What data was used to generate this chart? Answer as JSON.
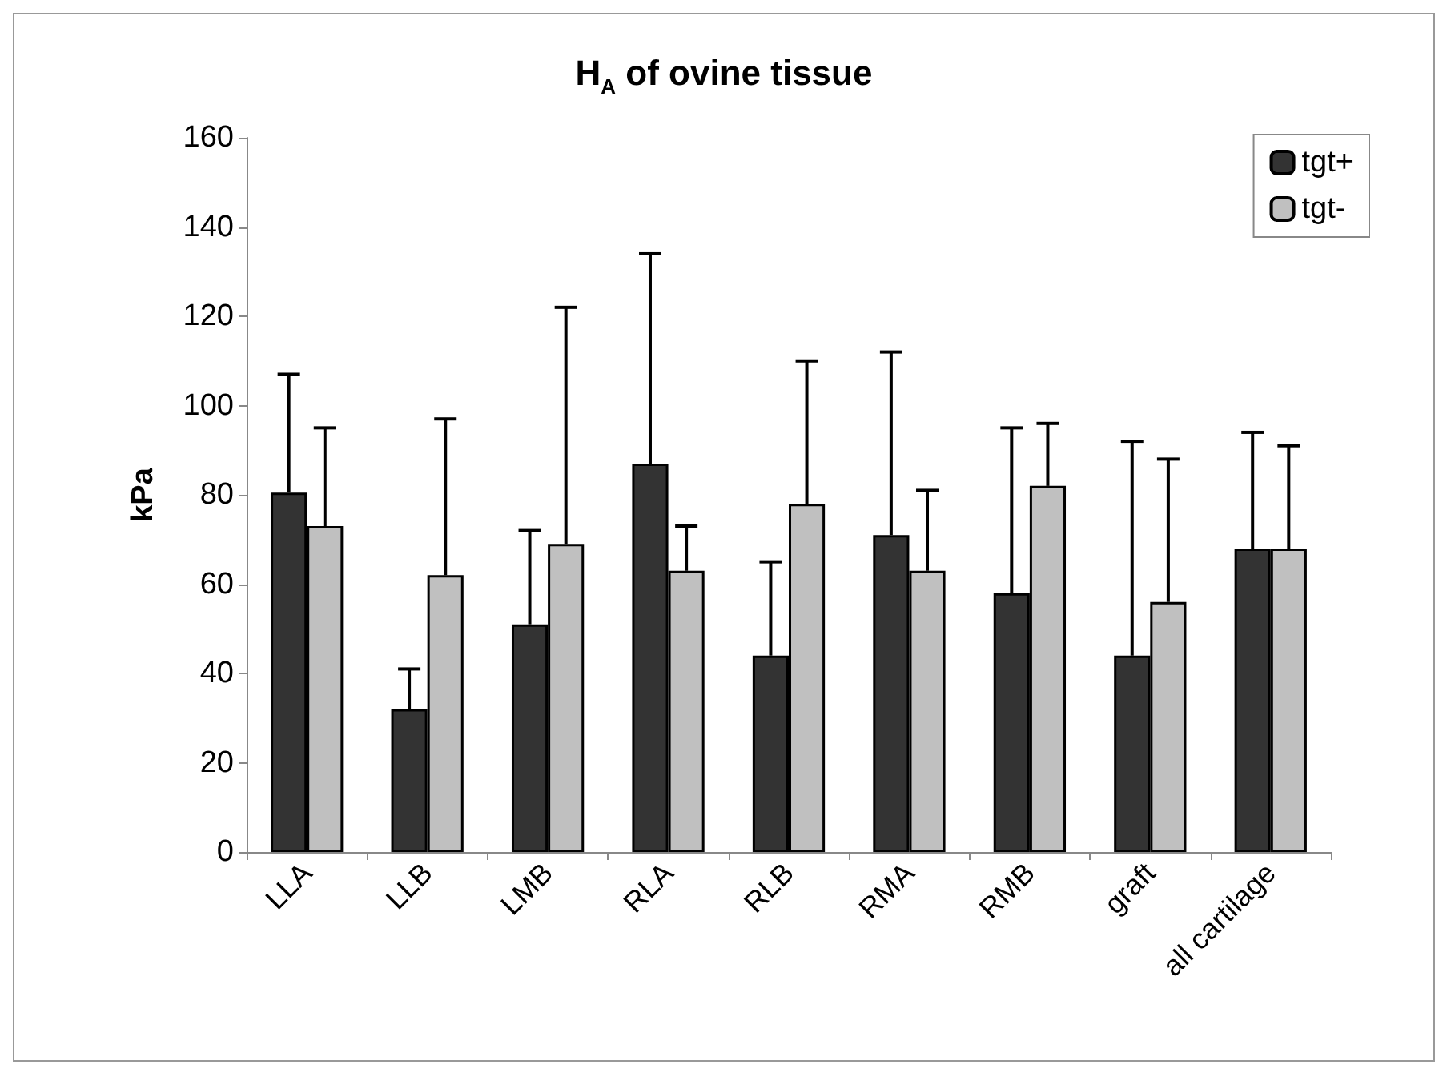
{
  "chart_data": {
    "type": "bar",
    "title": "H$_{A}$ of ovine tissue",
    "ylabel": "kPa",
    "categories": [
      "LLA",
      "LLB",
      "LMB",
      "RLA",
      "RLB",
      "RMA",
      "RMB",
      "graft",
      "all cartilage"
    ],
    "series": [
      {
        "name": "tgt+",
        "color": "#333333",
        "values": [
          80.5,
          32,
          51,
          87,
          44,
          71,
          58,
          44,
          68
        ],
        "errors": [
          [
            80.5,
            107
          ],
          [
            32,
            41
          ],
          [
            51,
            72
          ],
          [
            87,
            134
          ],
          [
            44,
            65
          ],
          [
            71,
            112
          ],
          [
            58,
            95
          ],
          [
            44,
            92
          ],
          [
            68,
            94
          ]
        ]
      },
      {
        "name": "tgt-",
        "color": "#c0c0c0",
        "values": [
          73,
          62,
          69,
          63,
          78,
          63,
          82,
          56,
          68
        ],
        "errors": [
          [
            73,
            95
          ],
          [
            62,
            97
          ],
          [
            69,
            122
          ],
          [
            63,
            73
          ],
          [
            78,
            110
          ],
          [
            63,
            81
          ],
          [
            82,
            96
          ],
          [
            56,
            88
          ],
          [
            68,
            91
          ]
        ]
      }
    ],
    "ylim": [
      0,
      160
    ],
    "yticks": [
      0,
      20,
      40,
      60,
      80,
      100,
      120,
      140,
      160
    ],
    "grid": false,
    "legend": "top right"
  }
}
